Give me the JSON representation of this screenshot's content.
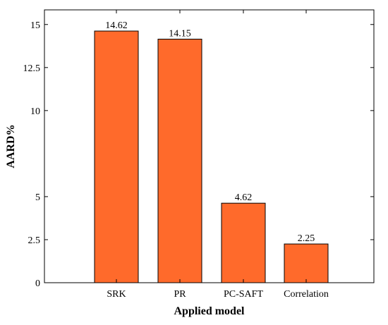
{
  "chart_data": {
    "type": "bar",
    "xlabel": "Applied model",
    "ylabel": "AARD%",
    "categories": [
      "SRK",
      "PR",
      "PC-SAFT",
      "Correlation"
    ],
    "values": [
      14.62,
      14.15,
      4.62,
      2.25
    ],
    "value_labels": [
      "14.62",
      "14.15",
      "4.62",
      "2.25"
    ],
    "yticks": [
      0,
      2.5,
      5,
      10,
      12.5,
      15
    ],
    "ytick_labels": [
      "0",
      "2.5",
      "5",
      "10",
      "12.5",
      "15"
    ],
    "ylim": [
      0,
      15.85
    ],
    "grid": false,
    "bar_color": "#FF6A2B"
  }
}
